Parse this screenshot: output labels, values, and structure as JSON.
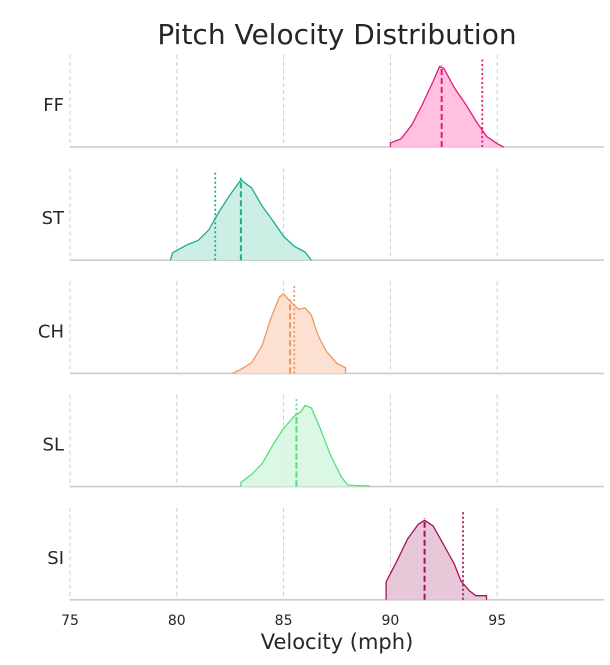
{
  "chart_data": {
    "type": "ridgeline-kde",
    "title": "Pitch Velocity Distribution",
    "xlabel": "Velocity (mph)",
    "ylabel": "",
    "xlim": [
      75,
      100
    ],
    "xticks": [
      75,
      80,
      85,
      90,
      95
    ],
    "grid": "x-dashed",
    "line_styles": {
      "mean": "dashed",
      "percentile": "dotted"
    },
    "series": [
      {
        "name": "FF",
        "color": "#e5197a",
        "fill": "#ffb6d9",
        "mean": 92.4,
        "dotted_line": 94.3,
        "density": [
          [
            90.0,
            0.0
          ],
          [
            90.0,
            0.05
          ],
          [
            90.5,
            0.1
          ],
          [
            91.0,
            0.27
          ],
          [
            91.5,
            0.52
          ],
          [
            92.0,
            0.8
          ],
          [
            92.3,
            0.98
          ],
          [
            92.5,
            0.96
          ],
          [
            93.0,
            0.72
          ],
          [
            93.5,
            0.53
          ],
          [
            94.0,
            0.32
          ],
          [
            94.5,
            0.13
          ],
          [
            95.0,
            0.04
          ],
          [
            95.3,
            0.0
          ]
        ]
      },
      {
        "name": "ST",
        "color": "#1aae8c",
        "fill": "#c3ebe0",
        "mean": 83.0,
        "dotted_line": 81.8,
        "density": [
          [
            79.7,
            0.0
          ],
          [
            79.8,
            0.09
          ],
          [
            80.5,
            0.19
          ],
          [
            81.0,
            0.24
          ],
          [
            81.5,
            0.37
          ],
          [
            82.0,
            0.6
          ],
          [
            82.5,
            0.8
          ],
          [
            83.0,
            0.98
          ],
          [
            83.5,
            0.88
          ],
          [
            84.0,
            0.66
          ],
          [
            84.5,
            0.48
          ],
          [
            85.0,
            0.29
          ],
          [
            85.5,
            0.17
          ],
          [
            86.0,
            0.1
          ],
          [
            86.3,
            0.0
          ]
        ]
      },
      {
        "name": "CH",
        "color": "#f0975e",
        "fill": "#fbdccb",
        "mean": 85.3,
        "dotted_line": 85.5,
        "density": [
          [
            82.6,
            0.0
          ],
          [
            83.0,
            0.05
          ],
          [
            83.5,
            0.13
          ],
          [
            84.0,
            0.34
          ],
          [
            84.4,
            0.67
          ],
          [
            84.8,
            0.93
          ],
          [
            85.0,
            0.97
          ],
          [
            85.3,
            0.88
          ],
          [
            85.7,
            0.78
          ],
          [
            86.0,
            0.8
          ],
          [
            86.3,
            0.71
          ],
          [
            86.6,
            0.47
          ],
          [
            87.0,
            0.27
          ],
          [
            87.5,
            0.12
          ],
          [
            87.9,
            0.07
          ],
          [
            87.9,
            0.0
          ]
        ]
      },
      {
        "name": "SL",
        "color": "#56e07e",
        "fill": "#d3f7de",
        "mean": 85.6,
        "dotted_line": 85.6,
        "density": [
          [
            83.0,
            0.0
          ],
          [
            83.0,
            0.05
          ],
          [
            83.5,
            0.15
          ],
          [
            84.0,
            0.28
          ],
          [
            84.5,
            0.51
          ],
          [
            85.0,
            0.71
          ],
          [
            85.5,
            0.86
          ],
          [
            85.8,
            0.91
          ],
          [
            86.0,
            0.99
          ],
          [
            86.3,
            0.96
          ],
          [
            86.7,
            0.72
          ],
          [
            87.2,
            0.38
          ],
          [
            87.7,
            0.12
          ],
          [
            88.0,
            0.02
          ],
          [
            88.5,
            0.01
          ],
          [
            89.0,
            0.01
          ],
          [
            89.0,
            0.0
          ]
        ]
      },
      {
        "name": "SI",
        "color": "#a3145a",
        "fill": "#e4bdd1",
        "mean": 91.6,
        "dotted_line": 93.4,
        "density": [
          [
            89.8,
            0.0
          ],
          [
            89.8,
            0.22
          ],
          [
            90.3,
            0.47
          ],
          [
            90.8,
            0.74
          ],
          [
            91.3,
            0.92
          ],
          [
            91.6,
            0.97
          ],
          [
            92.0,
            0.9
          ],
          [
            92.5,
            0.67
          ],
          [
            93.0,
            0.43
          ],
          [
            93.3,
            0.23
          ],
          [
            93.7,
            0.11
          ],
          [
            94.0,
            0.05
          ],
          [
            94.5,
            0.05
          ],
          [
            94.5,
            0.0
          ]
        ]
      }
    ]
  }
}
